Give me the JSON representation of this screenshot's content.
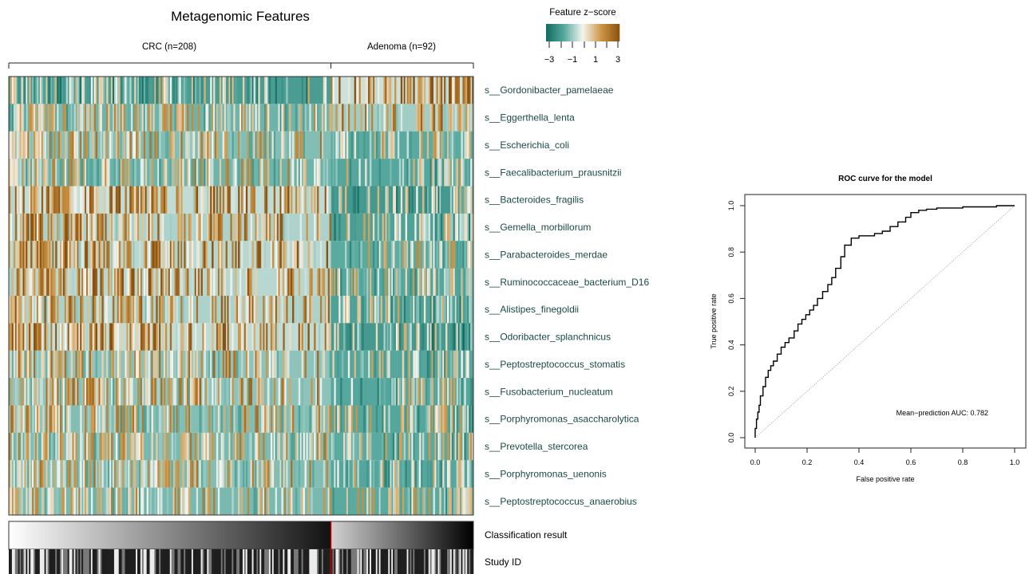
{
  "chart_data": [
    {
      "type": "heatmap",
      "title": "Metagenomic Features",
      "groups": [
        {
          "label": "CRC (n=208)",
          "n": 208
        },
        {
          "label": "Adenoma (n=92)",
          "n": 92
        }
      ],
      "features": [
        {
          "label": "s__Gordonibacter_pamelaeae",
          "crc_level": -0.5,
          "adenoma_level": 0.9
        },
        {
          "label": "s__Eggerthella_lenta",
          "crc_level": 0.0,
          "adenoma_level": 0.5
        },
        {
          "label": "s__Escherichia_coli",
          "crc_level": 0.2,
          "adenoma_level": -0.2
        },
        {
          "label": "s__Faecalibacterium_prausnitzii",
          "crc_level": 0.0,
          "adenoma_level": -0.3
        },
        {
          "label": "s__Bacteroides_fragilis",
          "crc_level": 0.8,
          "adenoma_level": -0.6
        },
        {
          "label": "s__Gemella_morbillorum",
          "crc_level": 0.6,
          "adenoma_level": -0.4
        },
        {
          "label": "s__Parabacteroides_merdae",
          "crc_level": 0.7,
          "adenoma_level": -0.2
        },
        {
          "label": "s__Ruminococcaceae_bacterium_D16",
          "crc_level": 0.7,
          "adenoma_level": -0.3
        },
        {
          "label": "s__Alistipes_finegoldii",
          "crc_level": 0.6,
          "adenoma_level": -0.4
        },
        {
          "label": "s__Odoribacter_splanchnicus",
          "crc_level": 0.8,
          "adenoma_level": -0.6
        },
        {
          "label": "s__Peptostreptococcus_stomatis",
          "crc_level": 0.3,
          "adenoma_level": -0.3
        },
        {
          "label": "s__Fusobacterium_nucleatum",
          "crc_level": 0.3,
          "adenoma_level": -0.3
        },
        {
          "label": "s__Porphyromonas_asaccharolytica",
          "crc_level": 0.2,
          "adenoma_level": -0.3
        },
        {
          "label": "s__Prevotella_stercorea",
          "crc_level": 0.1,
          "adenoma_level": -0.2
        },
        {
          "label": "s__Porphyromonas_uenonis",
          "crc_level": 0.2,
          "adenoma_level": -0.3
        },
        {
          "label": "s__Peptostreptococcus_anaerobius",
          "crc_level": 0.1,
          "adenoma_level": -0.2
        }
      ],
      "color_scale": {
        "title": "Feature z−score",
        "ticks": [
          "−3",
          "−1",
          "1",
          "3"
        ],
        "range": [
          -3,
          3
        ],
        "low_color": "#0f6b5e",
        "mid_color": "#f5f5f0",
        "high_color": "#8a5010"
      },
      "annotation_tracks": [
        {
          "label": "Classification result"
        },
        {
          "label": "Study ID"
        }
      ],
      "separator_color": "#cc0000"
    },
    {
      "type": "line",
      "title": "ROC curve for the model",
      "xlabel": "False positive rate",
      "ylabel": "True positive rate",
      "xlim": [
        0,
        1
      ],
      "ylim": [
        0,
        1
      ],
      "xticks": [
        "0.0",
        "0.2",
        "0.4",
        "0.6",
        "0.8",
        "1.0"
      ],
      "yticks": [
        "0.0",
        "0.2",
        "0.4",
        "0.6",
        "0.8",
        "1.0"
      ],
      "annotation": "Mean−prediction AUC: 0.782",
      "series": [
        {
          "x": [
            0.0,
            0.0,
            0.005,
            0.005,
            0.01,
            0.01,
            0.015,
            0.015,
            0.02,
            0.02,
            0.03,
            0.03,
            0.04,
            0.04,
            0.05,
            0.05,
            0.06,
            0.06,
            0.07,
            0.07,
            0.085,
            0.085,
            0.1,
            0.1,
            0.115,
            0.115,
            0.13,
            0.13,
            0.15,
            0.15,
            0.165,
            0.165,
            0.18,
            0.18,
            0.195,
            0.195,
            0.21,
            0.21,
            0.225,
            0.225,
            0.24,
            0.24,
            0.26,
            0.26,
            0.28,
            0.28,
            0.295,
            0.295,
            0.31,
            0.31,
            0.33,
            0.33,
            0.345,
            0.345,
            0.37,
            0.37,
            0.4,
            0.4,
            0.43,
            0.43,
            0.46,
            0.46,
            0.49,
            0.49,
            0.52,
            0.52,
            0.55,
            0.55,
            0.58,
            0.58,
            0.6,
            0.6,
            0.63,
            0.63,
            0.66,
            0.66,
            0.7,
            0.7,
            0.74,
            0.74,
            0.8,
            0.8,
            0.86,
            0.86,
            0.93,
            0.93,
            1.0
          ],
          "y": [
            0.0,
            0.04,
            0.04,
            0.08,
            0.08,
            0.11,
            0.11,
            0.14,
            0.14,
            0.18,
            0.18,
            0.22,
            0.22,
            0.26,
            0.26,
            0.29,
            0.29,
            0.31,
            0.31,
            0.33,
            0.33,
            0.36,
            0.36,
            0.39,
            0.39,
            0.41,
            0.41,
            0.43,
            0.43,
            0.46,
            0.46,
            0.49,
            0.49,
            0.51,
            0.51,
            0.53,
            0.53,
            0.55,
            0.55,
            0.57,
            0.57,
            0.6,
            0.6,
            0.63,
            0.63,
            0.66,
            0.66,
            0.69,
            0.69,
            0.73,
            0.73,
            0.78,
            0.78,
            0.83,
            0.83,
            0.86,
            0.86,
            0.87,
            0.87,
            0.87,
            0.87,
            0.88,
            0.88,
            0.89,
            0.89,
            0.91,
            0.91,
            0.93,
            0.93,
            0.95,
            0.95,
            0.97,
            0.97,
            0.98,
            0.98,
            0.985,
            0.985,
            0.99,
            0.99,
            0.99,
            0.99,
            0.995,
            0.995,
            0.995,
            0.995,
            1.0,
            1.0
          ]
        }
      ]
    }
  ]
}
